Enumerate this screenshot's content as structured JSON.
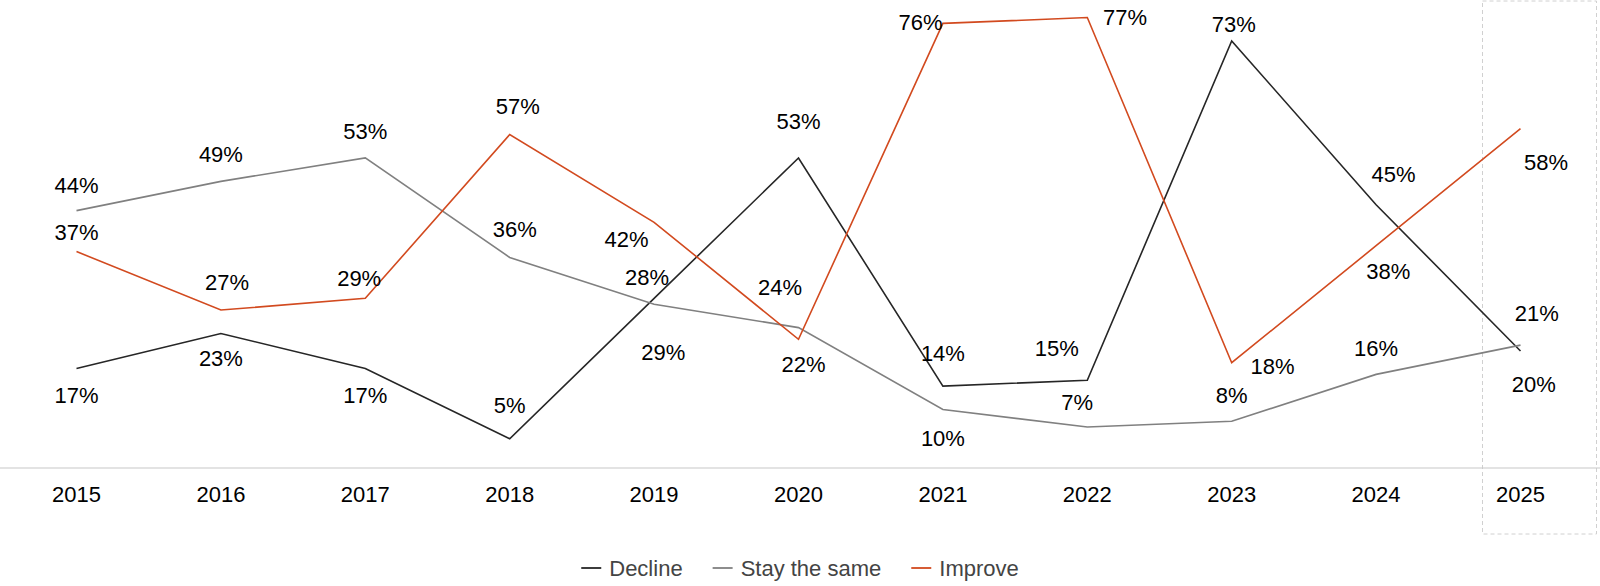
{
  "chart_data": {
    "type": "line",
    "categories": [
      "2015",
      "2016",
      "2017",
      "2018",
      "2019",
      "2020",
      "2021",
      "2022",
      "2023",
      "2024",
      "2025"
    ],
    "series": [
      {
        "name": "Decline",
        "color": "#262626",
        "values": [
          17,
          23,
          17,
          5,
          29,
          53,
          14,
          15,
          73,
          45,
          20
        ],
        "value_labels": [
          "17%",
          "23%",
          "17%",
          "5%",
          "29%",
          "53%",
          "14%",
          "15%",
          "73%",
          "45%",
          "20%"
        ]
      },
      {
        "name": "Stay the same",
        "color": "#808080",
        "values": [
          44,
          49,
          53,
          36,
          28,
          24,
          10,
          7,
          8,
          16,
          21
        ],
        "value_labels": [
          "44%",
          "49%",
          "53%",
          "36%",
          "28%",
          "24%",
          "10%",
          "7%",
          "8%",
          "16%",
          "21%"
        ]
      },
      {
        "name": "Improve",
        "color": "#d24a1f",
        "values": [
          37,
          27,
          29,
          57,
          42,
          22,
          76,
          77,
          18,
          38,
          58
        ],
        "value_labels": [
          "37%",
          "27%",
          "29%",
          "57%",
          "42%",
          "22%",
          "76%",
          "77%",
          "18%",
          "38%",
          "58%"
        ]
      }
    ],
    "ylim": [
      0,
      80
    ],
    "data_labels": true,
    "tick_labels": "x",
    "legend": "bottom",
    "grid": false
  }
}
